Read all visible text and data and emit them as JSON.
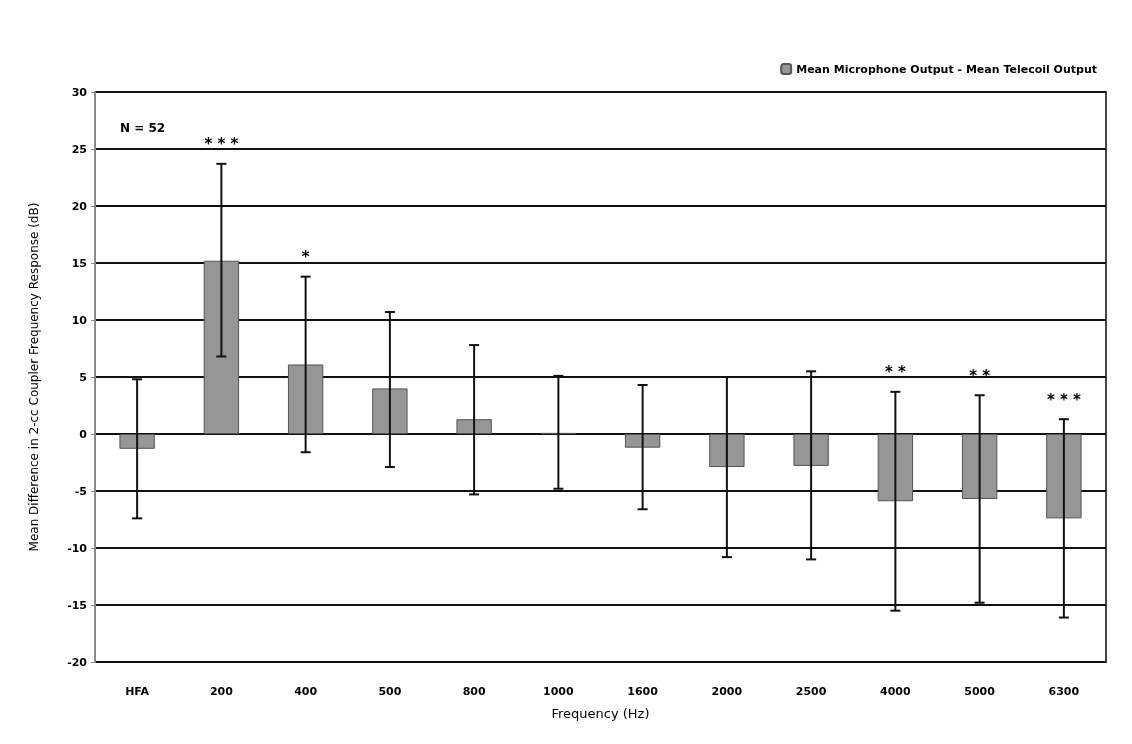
{
  "chart_data": {
    "type": "bar",
    "xlabel": "Frequency (Hz)",
    "ylabel": "Mean Difference in 2-cc Coupler Frequency Response (dB)",
    "categories": [
      "HFA",
      "200",
      "400",
      "500",
      "800",
      "1000",
      "1600",
      "2000",
      "2500",
      "4000",
      "5000",
      "6300"
    ],
    "series": [
      {
        "name": "Mean Microphone Output - Mean Telecoil Output",
        "color": "#969696",
        "values": [
          -1.3,
          15.2,
          6.1,
          4.0,
          1.3,
          0.1,
          -1.2,
          -2.9,
          -2.8,
          -5.9,
          -5.7,
          -7.4
        ],
        "errors": [
          [
            -7.4,
            4.8
          ],
          [
            6.8,
            23.7
          ],
          [
            -1.6,
            13.8
          ],
          [
            -2.9,
            10.7
          ],
          [
            -5.3,
            7.8
          ],
          [
            -4.8,
            5.1
          ],
          [
            -6.6,
            4.3
          ],
          [
            -10.8,
            5.0
          ],
          [
            -11.0,
            5.5
          ],
          [
            -15.5,
            3.7
          ],
          [
            -14.8,
            3.4
          ],
          [
            -16.1,
            1.3
          ]
        ]
      }
    ],
    "ylim": [
      -20,
      30
    ],
    "yticks": [
      -20,
      -15,
      -10,
      -5,
      0,
      5,
      10,
      15,
      20,
      25,
      30
    ],
    "grid": "y",
    "legend": "top right",
    "annotations": [
      "N = 52",
      {
        "text": "* * *",
        "x": "200",
        "y": 23.7
      },
      {
        "text": "*",
        "x": "400",
        "y": 13.8
      },
      {
        "text": "* *",
        "x": "4000",
        "y": 3.7
      },
      {
        "text": "* *",
        "x": "5000",
        "y": 3.4
      },
      {
        "text": "* * *",
        "x": "6300",
        "y": 1.3
      }
    ]
  }
}
